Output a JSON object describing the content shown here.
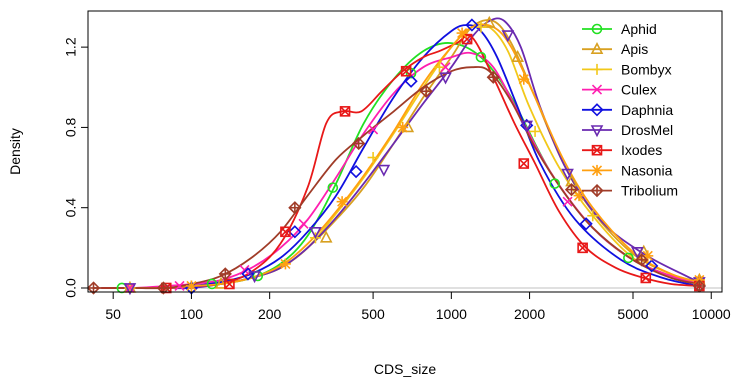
{
  "chart_data": {
    "type": "line",
    "title": "",
    "xlabel": "CDS_size",
    "ylabel": "Density",
    "x_scale": "log",
    "xlim": [
      40,
      11000
    ],
    "ylim": [
      -0.02,
      1.38
    ],
    "x_ticks": [
      50,
      100,
      200,
      500,
      1000,
      2000,
      5000,
      10000
    ],
    "x_tick_labels": [
      "50",
      "100",
      "200",
      "500",
      "1000",
      "2000",
      "5000",
      "10000"
    ],
    "y_ticks": [
      0.0,
      0.4,
      0.8,
      1.2
    ],
    "y_tick_labels": [
      "0.0",
      "0.4",
      "0.8",
      "1.2"
    ],
    "grid": false,
    "reference_line": {
      "y": 0,
      "color": "#c0c0c0"
    },
    "legend_position": "top-right",
    "series": [
      {
        "name": "Aphid",
        "color": "#22e022",
        "marker": "circle",
        "x": [
          50,
          80,
          100,
          130,
          170,
          220,
          280,
          360,
          460,
          600,
          780,
          1000,
          1300,
          1700,
          2400,
          3500,
          5000,
          7000,
          9000
        ],
        "y": [
          0.0,
          0.0,
          0.01,
          0.02,
          0.05,
          0.12,
          0.26,
          0.52,
          0.82,
          1.04,
          1.18,
          1.22,
          1.15,
          0.95,
          0.58,
          0.3,
          0.14,
          0.06,
          0.02
        ],
        "marker_x": [
          54,
          120,
          180,
          350,
          700,
          1300,
          2500,
          4800
        ],
        "marker_y": [
          0.0,
          0.02,
          0.06,
          0.5,
          1.07,
          1.15,
          0.52,
          0.15
        ]
      },
      {
        "name": "Apis",
        "color": "#d8a020",
        "marker": "triangle",
        "x": [
          55,
          80,
          100,
          130,
          170,
          220,
          280,
          360,
          460,
          600,
          780,
          1000,
          1200,
          1450,
          1700,
          2100,
          2700,
          3500,
          5000,
          7000,
          9000
        ],
        "y": [
          0.0,
          0.0,
          0.01,
          0.02,
          0.05,
          0.1,
          0.2,
          0.34,
          0.5,
          0.72,
          0.95,
          1.15,
          1.3,
          1.33,
          1.22,
          0.95,
          0.62,
          0.38,
          0.17,
          0.07,
          0.03
        ],
        "marker_x": [
          58,
          130,
          330,
          680,
          1400,
          1800,
          2900,
          5500,
          9000
        ],
        "marker_y": [
          0.0,
          0.02,
          0.25,
          0.8,
          1.32,
          1.15,
          0.53,
          0.18,
          0.04
        ]
      },
      {
        "name": "Bombyx",
        "color": "#f2c81a",
        "marker": "plus",
        "x": [
          55,
          80,
          100,
          130,
          170,
          220,
          280,
          360,
          460,
          600,
          780,
          1000,
          1200,
          1400,
          1650,
          2000,
          2600,
          3500,
          5000,
          7000,
          9000
        ],
        "y": [
          0.0,
          0.0,
          0.01,
          0.02,
          0.05,
          0.1,
          0.2,
          0.37,
          0.55,
          0.77,
          1.0,
          1.2,
          1.3,
          1.3,
          1.18,
          0.9,
          0.6,
          0.36,
          0.15,
          0.06,
          0.02
        ],
        "marker_x": [
          58,
          100,
          300,
          500,
          900,
          1300,
          2100,
          3500,
          9000
        ],
        "marker_y": [
          0.0,
          0.01,
          0.25,
          0.65,
          1.1,
          1.3,
          0.78,
          0.36,
          0.03
        ]
      },
      {
        "name": "Culex",
        "color": "#ff1fb0",
        "marker": "cross",
        "x": [
          45,
          60,
          80,
          100,
          130,
          170,
          220,
          280,
          360,
          460,
          600,
          780,
          1000,
          1200,
          1450,
          1800,
          2400,
          3500,
          5000,
          7000,
          9000
        ],
        "y": [
          0.0,
          0.0,
          0.01,
          0.02,
          0.04,
          0.1,
          0.2,
          0.34,
          0.55,
          0.77,
          0.97,
          1.1,
          1.15,
          1.17,
          1.1,
          0.88,
          0.58,
          0.3,
          0.14,
          0.06,
          0.02
        ],
        "marker_x": [
          58,
          90,
          160,
          270,
          500,
          950,
          2800
        ],
        "marker_y": [
          0.0,
          0.01,
          0.09,
          0.32,
          0.79,
          1.1,
          0.43
        ]
      },
      {
        "name": "Daphnia",
        "color": "#1010e0",
        "marker": "diamond",
        "x": [
          55,
          80,
          100,
          130,
          170,
          220,
          280,
          360,
          460,
          600,
          780,
          1000,
          1150,
          1300,
          1500,
          1800,
          2200,
          3000,
          4500,
          6500,
          9000
        ],
        "y": [
          0.0,
          0.0,
          0.01,
          0.03,
          0.07,
          0.15,
          0.28,
          0.46,
          0.7,
          0.95,
          1.15,
          1.28,
          1.31,
          1.28,
          1.15,
          0.9,
          0.62,
          0.34,
          0.14,
          0.05,
          0.01
        ],
        "marker_x": [
          100,
          165,
          250,
          430,
          700,
          1200,
          1950,
          3300,
          5900,
          9000
        ],
        "marker_y": [
          0.0,
          0.07,
          0.28,
          0.58,
          1.03,
          1.31,
          0.81,
          0.32,
          0.11,
          0.01
        ]
      },
      {
        "name": "DrosMel",
        "color": "#6a2ab0",
        "marker": "triangle-down",
        "x": [
          55,
          80,
          100,
          130,
          170,
          220,
          280,
          360,
          460,
          600,
          780,
          1000,
          1200,
          1400,
          1600,
          1850,
          2200,
          2800,
          3800,
          5500,
          8000,
          9000
        ],
        "y": [
          0.0,
          0.0,
          0.0,
          0.02,
          0.05,
          0.1,
          0.2,
          0.35,
          0.52,
          0.72,
          0.92,
          1.1,
          1.25,
          1.33,
          1.33,
          1.2,
          0.9,
          0.58,
          0.33,
          0.17,
          0.06,
          0.03
        ],
        "marker_x": [
          58,
          175,
          300,
          550,
          950,
          1650,
          1950,
          2800,
          5200,
          9000
        ],
        "marker_y": [
          0.0,
          0.06,
          0.28,
          0.59,
          1.05,
          1.26,
          0.81,
          0.57,
          0.18,
          0.03
        ]
      },
      {
        "name": "Ixodes",
        "color": "#e81818",
        "marker": "square-x",
        "x": [
          45,
          80,
          100,
          130,
          170,
          220,
          280,
          330,
          380,
          450,
          540,
          650,
          780,
          900,
          1050,
          1200,
          1450,
          1750,
          2100,
          2600,
          3300,
          4300,
          5500,
          7000,
          9000
        ],
        "y": [
          0.0,
          0.0,
          0.01,
          0.02,
          0.08,
          0.22,
          0.5,
          0.82,
          0.88,
          0.88,
          0.98,
          1.08,
          1.15,
          1.18,
          1.22,
          1.25,
          1.05,
          0.82,
          0.62,
          0.38,
          0.2,
          0.1,
          0.05,
          0.02,
          0.01
        ],
        "marker_x": [
          80,
          140,
          230,
          390,
          670,
          1150,
          1900,
          3200,
          5600,
          9000
        ],
        "marker_y": [
          0.0,
          0.02,
          0.28,
          0.88,
          1.08,
          1.24,
          0.62,
          0.2,
          0.05,
          0.01
        ]
      },
      {
        "name": "Nasonia",
        "color": "#ffa010",
        "marker": "asterisk",
        "x": [
          55,
          80,
          100,
          130,
          170,
          220,
          280,
          360,
          460,
          600,
          780,
          1000,
          1200,
          1450,
          1700,
          2100,
          2700,
          3500,
          5000,
          7000,
          9000
        ],
        "y": [
          0.0,
          0.0,
          0.01,
          0.02,
          0.05,
          0.11,
          0.22,
          0.38,
          0.56,
          0.78,
          1.02,
          1.2,
          1.3,
          1.3,
          1.2,
          0.95,
          0.64,
          0.4,
          0.18,
          0.07,
          0.03
        ],
        "marker_x": [
          100,
          230,
          380,
          650,
          1100,
          1900,
          3100,
          5700,
          9000
        ],
        "marker_y": [
          0.01,
          0.12,
          0.43,
          0.8,
          1.27,
          1.04,
          0.46,
          0.16,
          0.04
        ]
      },
      {
        "name": "Tribolium",
        "color": "#a03c28",
        "marker": "diamond-plus",
        "x": [
          42,
          60,
          80,
          100,
          130,
          170,
          220,
          280,
          360,
          460,
          600,
          780,
          1000,
          1200,
          1400,
          1700,
          2100,
          2700,
          3500,
          5000,
          7000,
          9000
        ],
        "y": [
          0.0,
          0.0,
          0.0,
          0.02,
          0.06,
          0.15,
          0.28,
          0.46,
          0.64,
          0.76,
          0.88,
          1.0,
          1.08,
          1.1,
          1.08,
          0.93,
          0.7,
          0.48,
          0.3,
          0.14,
          0.05,
          0.02
        ],
        "marker_x": [
          42,
          78,
          135,
          250,
          440,
          800,
          1450,
          2900,
          5400,
          9000
        ],
        "marker_y": [
          0.0,
          0.0,
          0.07,
          0.4,
          0.72,
          0.98,
          1.05,
          0.49,
          0.14,
          0.01
        ]
      }
    ]
  }
}
